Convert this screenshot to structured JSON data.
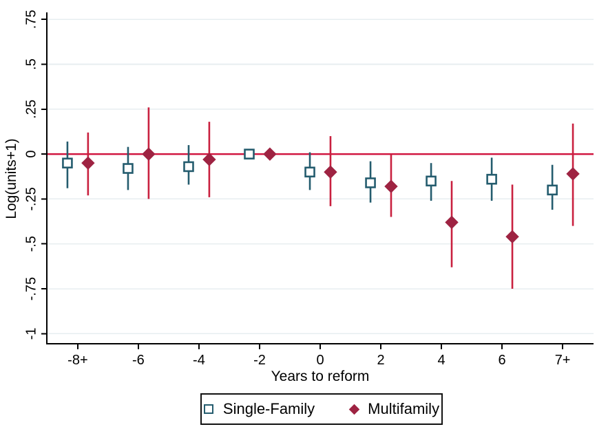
{
  "chart_data": {
    "type": "scatter",
    "subtype": "event-study-coefficient-plot",
    "title": "",
    "xlabel": "Years to reform",
    "ylabel": "Log(units+1)",
    "xlim": [
      -9.02,
      9.02
    ],
    "ylim": [
      -1.056,
      0.789
    ],
    "grid": true,
    "grid_color": "#E7EEF0",
    "axis_color": "#000000",
    "zero_line": {
      "y": 0,
      "color": "#D0153F"
    },
    "x_ticks": [
      {
        "value": -8,
        "label": "-8+"
      },
      {
        "value": -6,
        "label": "-6"
      },
      {
        "value": -4,
        "label": "-4"
      },
      {
        "value": -2,
        "label": "-2"
      },
      {
        "value": 0,
        "label": "0"
      },
      {
        "value": 2,
        "label": "2"
      },
      {
        "value": 4,
        "label": "4"
      },
      {
        "value": 6,
        "label": "6"
      },
      {
        "value": 8,
        "label": "7+"
      }
    ],
    "y_ticks": [
      {
        "value": 0.75,
        "label": ".75"
      },
      {
        "value": 0.5,
        "label": ".5"
      },
      {
        "value": 0.25,
        "label": ".25"
      },
      {
        "value": 0,
        "label": "0"
      },
      {
        "value": -0.25,
        "label": "-.25"
      },
      {
        "value": -0.5,
        "label": "-.5"
      },
      {
        "value": -0.75,
        "label": "-.75"
      },
      {
        "value": -1,
        "label": "-1"
      }
    ],
    "legend_position": "bottom-center",
    "series": [
      {
        "name": "Single-Family",
        "marker": "square-hollow",
        "marker_color": "#245C6E",
        "marker_fill": "#FFFFFF",
        "line_color": "#245C6E",
        "x_offset": -0.34,
        "points": [
          {
            "x": -8,
            "est": -0.05,
            "lo": -0.19,
            "hi": 0.07
          },
          {
            "x": -6,
            "est": -0.08,
            "lo": -0.2,
            "hi": 0.04
          },
          {
            "x": -4,
            "est": -0.07,
            "lo": -0.17,
            "hi": 0.05
          },
          {
            "x": -2,
            "est": 0.0,
            "lo": 0.0,
            "hi": 0.0
          },
          {
            "x": 0,
            "est": -0.1,
            "lo": -0.2,
            "hi": 0.01
          },
          {
            "x": 2,
            "est": -0.16,
            "lo": -0.27,
            "hi": -0.04
          },
          {
            "x": 4,
            "est": -0.15,
            "lo": -0.26,
            "hi": -0.05
          },
          {
            "x": 6,
            "est": -0.14,
            "lo": -0.26,
            "hi": -0.02
          },
          {
            "x": 8,
            "est": -0.2,
            "lo": -0.31,
            "hi": -0.06
          }
        ]
      },
      {
        "name": "Multifamily",
        "marker": "diamond-filled",
        "marker_color": "#9E2342",
        "marker_fill": "#9E2342",
        "line_color": "#C9203F",
        "x_offset": 0.34,
        "points": [
          {
            "x": -8,
            "est": -0.05,
            "lo": -0.23,
            "hi": 0.12
          },
          {
            "x": -6,
            "est": 0.0,
            "lo": -0.25,
            "hi": 0.26
          },
          {
            "x": -4,
            "est": -0.03,
            "lo": -0.24,
            "hi": 0.18
          },
          {
            "x": -2,
            "est": 0.0,
            "lo": 0.0,
            "hi": 0.0
          },
          {
            "x": 0,
            "est": -0.1,
            "lo": -0.29,
            "hi": 0.1
          },
          {
            "x": 2,
            "est": -0.18,
            "lo": -0.35,
            "hi": 0.0
          },
          {
            "x": 4,
            "est": -0.38,
            "lo": -0.63,
            "hi": -0.15
          },
          {
            "x": 6,
            "est": -0.46,
            "lo": -0.75,
            "hi": -0.17
          },
          {
            "x": 8,
            "est": -0.11,
            "lo": -0.4,
            "hi": 0.17
          }
        ]
      }
    ]
  }
}
